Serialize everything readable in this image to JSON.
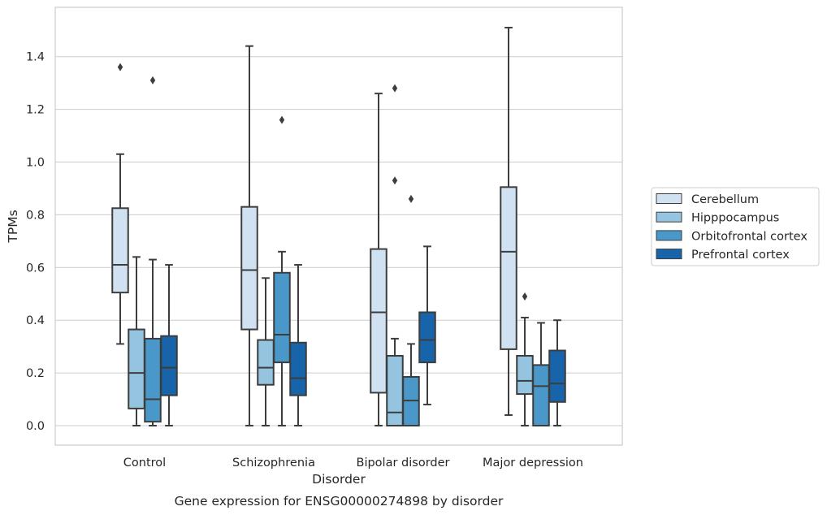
{
  "chart_data": {
    "type": "box",
    "title": "",
    "caption": "Gene expression for ENSG00000274898 by disorder",
    "xlabel": "Disorder",
    "ylabel": "TPMs",
    "ylim": [
      -0.07,
      1.59
    ],
    "yticks": [
      0.0,
      0.2,
      0.4,
      0.6,
      0.8,
      1.0,
      1.2,
      1.4
    ],
    "ytick_labels": [
      "0.0",
      "0.2",
      "0.4",
      "0.6",
      "0.8",
      "1.0",
      "1.2",
      "1.4"
    ],
    "grid": "horizontal",
    "legend_position": "right",
    "categories": [
      "Control",
      "Schizophrenia",
      "Bipolar disorder",
      "Major depression"
    ],
    "series": [
      {
        "name": "Cerebellum",
        "color": "#d0e1f2",
        "boxes": [
          {
            "whislo": 0.31,
            "q1": 0.505,
            "med": 0.61,
            "q3": 0.825,
            "whishi": 1.03,
            "fliers": [
              1.36
            ]
          },
          {
            "whislo": 0.0,
            "q1": 0.365,
            "med": 0.59,
            "q3": 0.83,
            "whishi": 1.44,
            "fliers": []
          },
          {
            "whislo": 0.0,
            "q1": 0.125,
            "med": 0.43,
            "q3": 0.67,
            "whishi": 1.26,
            "fliers": []
          },
          {
            "whislo": 0.04,
            "q1": 0.29,
            "med": 0.66,
            "q3": 0.905,
            "whishi": 1.51,
            "fliers": []
          }
        ]
      },
      {
        "name": "Hipppocampus",
        "color": "#94c4df",
        "boxes": [
          {
            "whislo": 0.0,
            "q1": 0.065,
            "med": 0.2,
            "q3": 0.365,
            "whishi": 0.64,
            "fliers": []
          },
          {
            "whislo": 0.0,
            "q1": 0.155,
            "med": 0.22,
            "q3": 0.325,
            "whishi": 0.56,
            "fliers": []
          },
          {
            "whislo": 0.0,
            "q1": 0.0,
            "med": 0.05,
            "q3": 0.265,
            "whishi": 0.33,
            "fliers": [
              0.93,
              1.28
            ]
          },
          {
            "whislo": 0.0,
            "q1": 0.12,
            "med": 0.17,
            "q3": 0.265,
            "whishi": 0.41,
            "fliers": [
              0.49
            ]
          }
        ]
      },
      {
        "name": "Orbitofrontal cortex",
        "color": "#4a98c9",
        "boxes": [
          {
            "whislo": 0.0,
            "q1": 0.015,
            "med": 0.1,
            "q3": 0.33,
            "whishi": 0.63,
            "fliers": [
              1.31
            ]
          },
          {
            "whislo": 0.0,
            "q1": 0.24,
            "med": 0.345,
            "q3": 0.58,
            "whishi": 0.66,
            "fliers": [
              1.16
            ]
          },
          {
            "whislo": 0.0,
            "q1": 0.0,
            "med": 0.095,
            "q3": 0.185,
            "whishi": 0.31,
            "fliers": [
              0.86
            ]
          },
          {
            "whislo": 0.0,
            "q1": 0.0,
            "med": 0.15,
            "q3": 0.23,
            "whishi": 0.39,
            "fliers": []
          }
        ]
      },
      {
        "name": "Prefrontal cortex",
        "color": "#1764ab",
        "boxes": [
          {
            "whislo": 0.0,
            "q1": 0.115,
            "med": 0.22,
            "q3": 0.34,
            "whishi": 0.61,
            "fliers": []
          },
          {
            "whislo": 0.0,
            "q1": 0.115,
            "med": 0.18,
            "q3": 0.315,
            "whishi": 0.61,
            "fliers": []
          },
          {
            "whislo": 0.08,
            "q1": 0.24,
            "med": 0.325,
            "q3": 0.43,
            "whishi": 0.68,
            "fliers": []
          },
          {
            "whislo": 0.0,
            "q1": 0.09,
            "med": 0.16,
            "q3": 0.285,
            "whishi": 0.4,
            "fliers": []
          }
        ]
      }
    ]
  }
}
